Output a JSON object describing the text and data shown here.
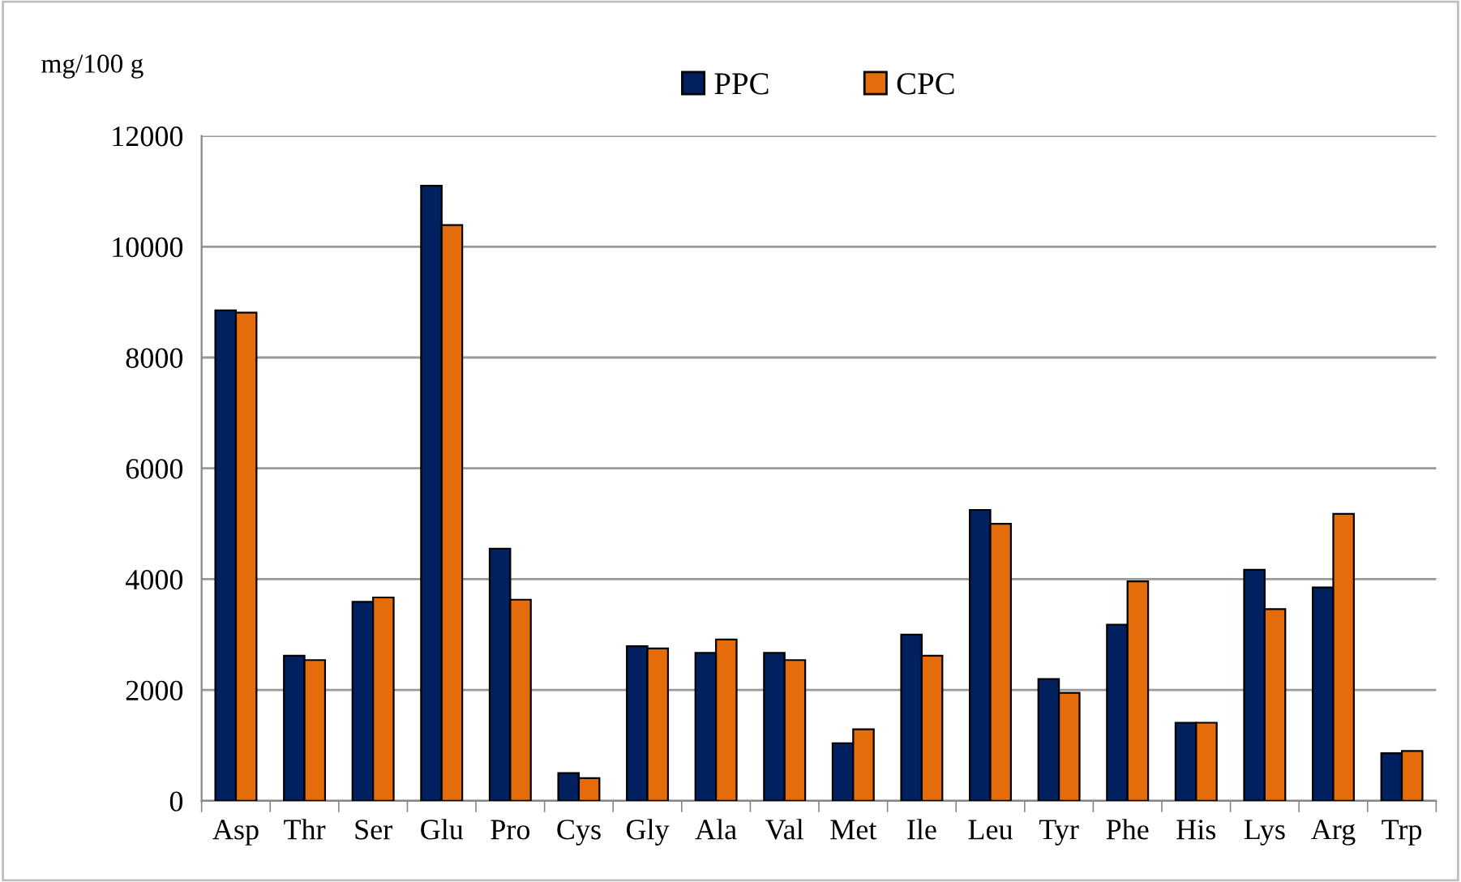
{
  "chart_data": {
    "type": "bar",
    "ylabel": "mg/100 g",
    "categories": [
      "Asp",
      "Thr",
      "Ser",
      "Glu",
      "Pro",
      "Cys",
      "Gly",
      "Ala",
      "Val",
      "Met",
      "Ile",
      "Leu",
      "Tyr",
      "Phe",
      "His",
      "Lys",
      "Arg",
      "Trp"
    ],
    "series": [
      {
        "name": "PPC",
        "color": "#002060",
        "values": [
          8850,
          2620,
          3590,
          11100,
          4550,
          500,
          2790,
          2670,
          2670,
          1040,
          3000,
          5250,
          2200,
          3180,
          1410,
          4170,
          3850,
          860
        ]
      },
      {
        "name": "CPC",
        "color": "#e46c0a",
        "values": [
          8810,
          2540,
          3670,
          10390,
          3630,
          410,
          2750,
          2910,
          2540,
          1290,
          2620,
          5000,
          1950,
          3960,
          1410,
          3460,
          5180,
          900
        ]
      }
    ],
    "ylim": [
      0,
      12000
    ],
    "yticks": [
      0,
      2000,
      4000,
      6000,
      8000,
      10000,
      12000
    ],
    "grid": "y",
    "legend": "top"
  }
}
